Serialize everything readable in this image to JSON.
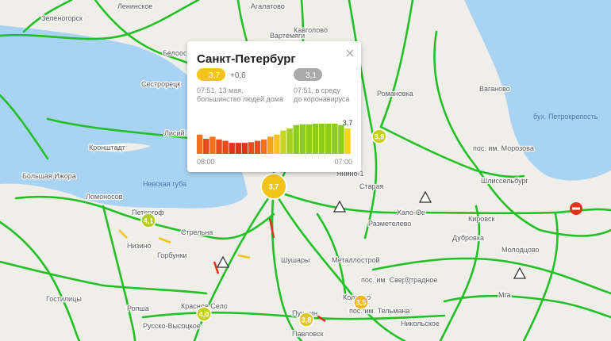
{
  "popup": {
    "title": "Санкт-Петербург",
    "current": {
      "score": "3,7",
      "delta": "+0,6",
      "time": "07:51, 13 мая,",
      "note": "большинство людей дома"
    },
    "previous": {
      "score": "3,1",
      "time": "07:51, в среду",
      "note": "до коронавируса"
    },
    "chart": {
      "values": [
        2.8,
        2.2,
        2.5,
        2.1,
        1.9,
        1.6,
        1.6,
        1.6,
        1.7,
        1.9,
        2.1,
        2.5,
        2.8,
        3.4,
        3.7,
        4.2,
        4.3,
        4.3,
        4.4,
        4.4,
        4.4,
        4.4,
        4.2,
        3.7
      ],
      "value_labels": [
        null,
        null,
        null,
        null,
        null,
        null,
        null,
        null,
        null,
        null,
        null,
        null,
        null,
        null,
        null,
        null,
        null,
        null,
        null,
        null,
        null,
        null,
        null,
        "3,7"
      ],
      "colors": [
        "#f5701f",
        "#e94b1c",
        "#f5701f",
        "#e94b1c",
        "#e94b1c",
        "#e0331a",
        "#e0331a",
        "#e0331a",
        "#e94b1c",
        "#e94b1c",
        "#f5701f",
        "#f7a21b",
        "#f7c21b",
        "#c9d41e",
        "#a6cf1f",
        "#8ccb1f",
        "#8ccb1f",
        "#8ccb1f",
        "#8ccb1f",
        "#8ccb1f",
        "#8ccb1f",
        "#8ccb1f",
        "#8ccb1f",
        "#f2d61c"
      ],
      "start_label": "08:00",
      "end_label": "07:00"
    }
  },
  "markers": [
    "3,7",
    "3,9",
    "4,1",
    "4,0",
    "3,8",
    "3,5"
  ],
  "places": [
    "Зеленогорск",
    "Ленинское",
    "Агалатово",
    "Вартемяги",
    "Кавголово",
    "Белоостров",
    "Сестрорецк",
    "Лисий Нос",
    "Кронштадт",
    "Большая Ижора",
    "Невская губа",
    "Ломоносов",
    "Петергоф",
    "Стрельна",
    "Низино",
    "Горбунки",
    "Шушары",
    "Металлострой",
    "Красное Село",
    "Русско-Высоцкое",
    "Пушкин",
    "Павловск",
    "Колпино",
    "пос. им. Свердлова",
    "пос. им. Тельмана",
    "Отрадное",
    "Никольское",
    "Кировск",
    "Шлиссельбург",
    "пос. им. Морозова",
    "Ваганово",
    "Романовка",
    "бух. Петрокрепость",
    "Мга",
    "Дубровка",
    "Разметелево",
    "Хапо-Ое",
    "Старая",
    "Ропша",
    "Гостилицы",
    "Янино-1",
    "Молодцово"
  ]
}
